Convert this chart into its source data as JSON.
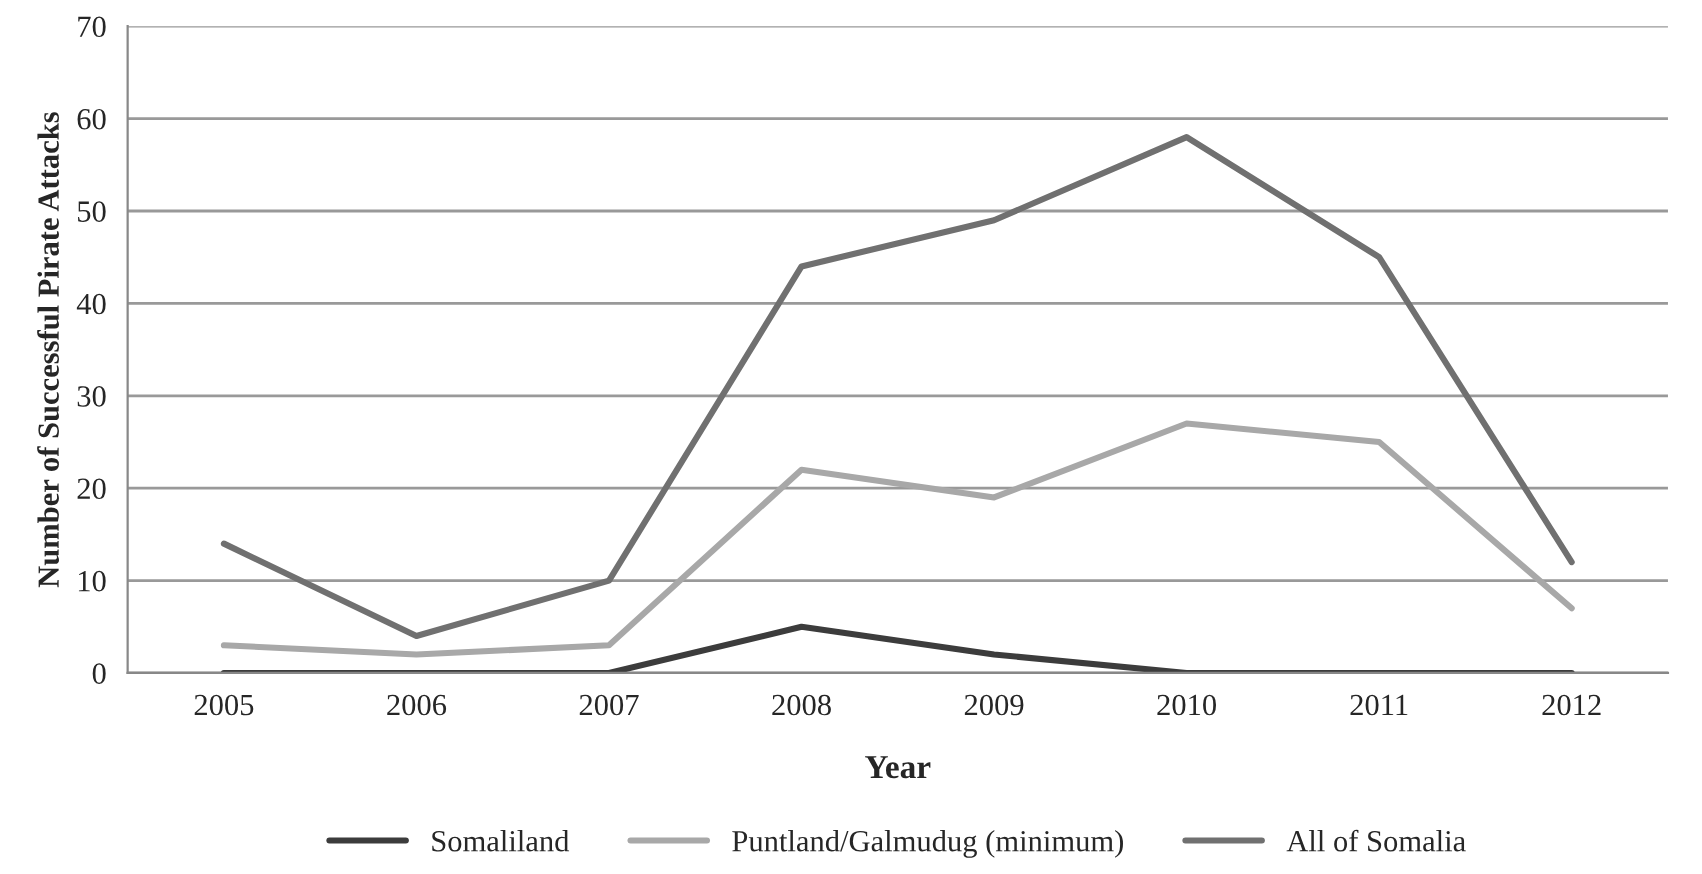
{
  "chart_data": {
    "type": "line",
    "xlabel": "Year",
    "ylabel": "Number of Successful Pirate Attacks",
    "categories": [
      "2005",
      "2006",
      "2007",
      "2008",
      "2009",
      "2010",
      "2011",
      "2012"
    ],
    "series": [
      {
        "name": "Somaliland",
        "color": "#3c3c3c",
        "values": [
          0,
          0,
          0,
          5,
          2,
          0,
          0,
          0
        ]
      },
      {
        "name": "Puntland/Galmudug (minimum)",
        "color": "#a8a8a8",
        "values": [
          3,
          2,
          3,
          22,
          19,
          27,
          25,
          7
        ]
      },
      {
        "name": "All of Somalia",
        "color": "#707070",
        "values": [
          14,
          4,
          10,
          44,
          49,
          58,
          45,
          12
        ]
      }
    ],
    "ylim": [
      0,
      70
    ],
    "yticks": [
      0,
      10,
      20,
      30,
      40,
      50,
      60,
      70
    ],
    "grid": "y",
    "legend": "bottom",
    "marker": "none",
    "line_style": "solid"
  }
}
